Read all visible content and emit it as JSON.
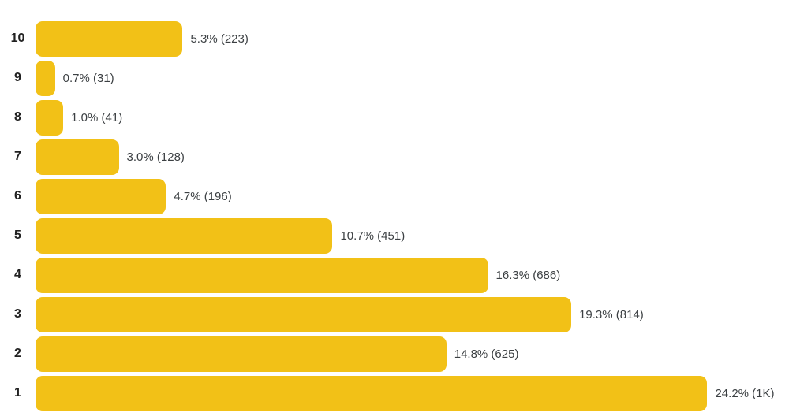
{
  "chart_data": {
    "type": "bar",
    "orientation": "horizontal",
    "title": "",
    "xlabel": "",
    "ylabel": "",
    "grid": false,
    "legend": "none",
    "categories": [
      "10",
      "9",
      "8",
      "7",
      "6",
      "5",
      "4",
      "3",
      "2",
      "1"
    ],
    "values": [
      5.3,
      0.7,
      1.0,
      3.0,
      4.7,
      10.7,
      16.3,
      19.3,
      14.8,
      24.2
    ],
    "counts": [
      223,
      31,
      41,
      128,
      196,
      451,
      686,
      814,
      625,
      1000
    ],
    "value_labels": [
      "5.3% (223)",
      "0.7% (31)",
      "1.0% (41)",
      "3.0% (128)",
      "4.7% (196)",
      "10.7% (451)",
      "16.3% (686)",
      "19.3% (814)",
      "14.8% (625)",
      "24.2% (1K)"
    ],
    "xlim": [
      0,
      27
    ],
    "bar_color": "#F2C117",
    "category_label_color": "#212121",
    "value_label_color": "#3C4043",
    "background_color": "#FFFFFF"
  }
}
